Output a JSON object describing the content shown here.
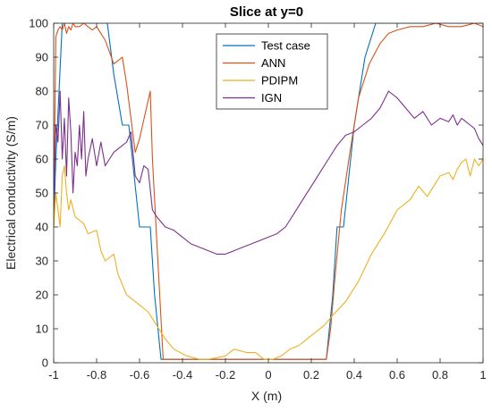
{
  "chart_data": {
    "type": "line",
    "title": "Slice at y=0",
    "xlabel": "X (m)",
    "ylabel": "Electrical conductivity (S/m)",
    "xlim": [
      -1,
      1
    ],
    "ylim": [
      0,
      100
    ],
    "xticks": [
      -1,
      -0.8,
      -0.6,
      -0.4,
      -0.2,
      0,
      0.2,
      0.4,
      0.6,
      0.8,
      1
    ],
    "xtick_labels": [
      "-1",
      "-0.8",
      "-0.6",
      "-0.4",
      "-0.2",
      "0",
      "0.2",
      "0.4",
      "0.6",
      "0.8",
      "1"
    ],
    "yticks": [
      0,
      10,
      20,
      30,
      40,
      50,
      60,
      70,
      80,
      90,
      100
    ],
    "ytick_labels": [
      "0",
      "10",
      "20",
      "30",
      "40",
      "50",
      "60",
      "70",
      "80",
      "90",
      "100"
    ],
    "grid": false,
    "legend_position": "top-center",
    "series": [
      {
        "name": "Test case",
        "color": "#0072BD",
        "x": [
          -1.0,
          -0.99,
          -0.96,
          -0.9,
          -0.8,
          -0.75,
          -0.72,
          -0.68,
          -0.65,
          -0.6,
          -0.55,
          -0.53,
          -0.5,
          -0.47,
          -0.3,
          0.0,
          0.27,
          0.3,
          0.32,
          0.35,
          0.4,
          0.45,
          0.5,
          0.55,
          1.0
        ],
        "y": [
          40,
          60,
          100,
          100,
          100,
          100,
          85,
          70,
          70,
          40,
          40,
          20,
          1,
          1,
          1,
          1,
          1,
          20,
          40,
          40,
          70,
          90,
          100,
          100,
          100
        ]
      },
      {
        "name": "ANN",
        "color": "#D95319",
        "x": [
          -1.0,
          -0.99,
          -0.98,
          -0.97,
          -0.96,
          -0.95,
          -0.94,
          -0.93,
          -0.92,
          -0.91,
          -0.9,
          -0.88,
          -0.86,
          -0.84,
          -0.82,
          -0.8,
          -0.78,
          -0.76,
          -0.72,
          -0.7,
          -0.68,
          -0.66,
          -0.62,
          -0.6,
          -0.55,
          -0.54,
          -0.49,
          -0.3,
          0.0,
          0.27,
          0.29,
          0.31,
          0.34,
          0.38,
          0.42,
          0.47,
          0.52,
          0.56,
          0.6,
          0.66,
          0.72,
          0.78,
          0.84,
          0.9,
          0.96,
          1.0
        ],
        "y": [
          40,
          96,
          98,
          99,
          98,
          100,
          97,
          99,
          98,
          100,
          99,
          99,
          100,
          99,
          98,
          99,
          97,
          95,
          88,
          89,
          90,
          82,
          62,
          66,
          80,
          60,
          1,
          1,
          1,
          1,
          10,
          25,
          45,
          62,
          78,
          88,
          94,
          97,
          98,
          99,
          99,
          100,
          99,
          99,
          100,
          99
        ]
      },
      {
        "name": "PDIPM",
        "color": "#EDB120",
        "x": [
          -1.0,
          -0.99,
          -0.98,
          -0.97,
          -0.96,
          -0.95,
          -0.94,
          -0.93,
          -0.92,
          -0.9,
          -0.88,
          -0.86,
          -0.84,
          -0.8,
          -0.78,
          -0.76,
          -0.72,
          -0.7,
          -0.66,
          -0.62,
          -0.56,
          -0.53,
          -0.5,
          -0.48,
          -0.44,
          -0.38,
          -0.32,
          -0.28,
          -0.2,
          -0.16,
          -0.1,
          -0.06,
          -0.02,
          0.02,
          0.06,
          0.1,
          0.14,
          0.2,
          0.26,
          0.3,
          0.36,
          0.42,
          0.48,
          0.54,
          0.6,
          0.66,
          0.7,
          0.74,
          0.78,
          0.8,
          0.84,
          0.86,
          0.88,
          0.9,
          0.92,
          0.94,
          0.96,
          0.98,
          1.0
        ],
        "y": [
          40,
          50,
          45,
          40,
          55,
          58,
          50,
          45,
          48,
          43,
          42,
          41,
          38,
          39,
          33,
          30,
          32,
          26,
          20,
          18,
          15,
          12,
          9,
          7,
          4,
          2,
          1,
          1,
          2,
          4,
          3,
          3,
          1,
          1,
          2,
          4,
          5,
          8,
          11,
          14,
          18,
          24,
          32,
          38,
          45,
          48,
          52,
          49,
          53,
          55,
          56,
          54,
          57,
          59,
          60,
          55,
          60,
          58,
          60
        ]
      },
      {
        "name": "IGN",
        "color": "#7E2F8E",
        "x": [
          -1.0,
          -0.99,
          -0.98,
          -0.97,
          -0.96,
          -0.95,
          -0.94,
          -0.93,
          -0.92,
          -0.91,
          -0.9,
          -0.89,
          -0.88,
          -0.87,
          -0.86,
          -0.85,
          -0.84,
          -0.82,
          -0.8,
          -0.78,
          -0.76,
          -0.74,
          -0.72,
          -0.7,
          -0.68,
          -0.66,
          -0.64,
          -0.62,
          -0.6,
          -0.58,
          -0.56,
          -0.54,
          -0.52,
          -0.48,
          -0.44,
          -0.4,
          -0.36,
          -0.32,
          -0.28,
          -0.24,
          -0.2,
          -0.16,
          -0.12,
          -0.08,
          -0.04,
          0.0,
          0.04,
          0.08,
          0.12,
          0.16,
          0.2,
          0.24,
          0.28,
          0.32,
          0.36,
          0.4,
          0.44,
          0.48,
          0.52,
          0.56,
          0.6,
          0.64,
          0.68,
          0.72,
          0.76,
          0.8,
          0.84,
          0.86,
          0.88,
          0.9,
          0.92,
          0.94,
          0.96,
          0.98,
          1.0
        ],
        "y": [
          48,
          70,
          65,
          80,
          60,
          72,
          55,
          78,
          68,
          50,
          62,
          58,
          70,
          60,
          74,
          55,
          60,
          66,
          58,
          65,
          58,
          60,
          62,
          63,
          64,
          65,
          68,
          55,
          53,
          58,
          57,
          45,
          43,
          40,
          39,
          37,
          35,
          34,
          33,
          32,
          32,
          33,
          34,
          35,
          36,
          37,
          38,
          40,
          44,
          48,
          52,
          56,
          60,
          64,
          67,
          68,
          70,
          72,
          75,
          80,
          78,
          75,
          72,
          74,
          70,
          72,
          71,
          73,
          70,
          72,
          71,
          70,
          69,
          66,
          64
        ]
      }
    ]
  }
}
